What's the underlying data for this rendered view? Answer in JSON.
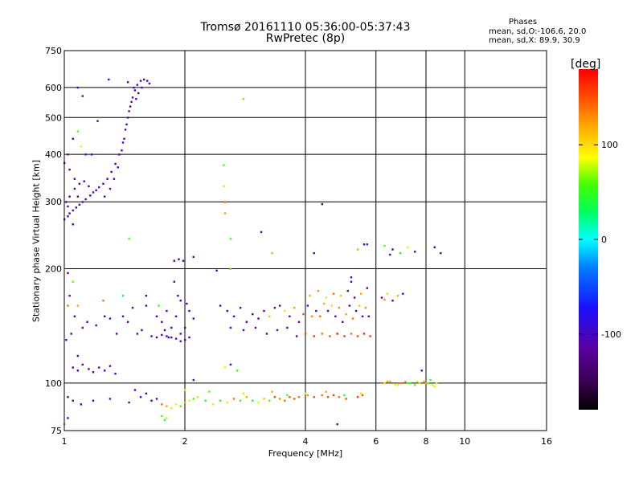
{
  "chart_data": {
    "type": "scatter",
    "title": "Tromsø 20161110 05:36:00-05:37:43",
    "subtitle": "RwPretec (8p)",
    "xlabel": "Frequency [MHz]",
    "ylabel": "Stationary phase Virtual Height [km]",
    "x_scale": "log",
    "y_scale": "log",
    "xlim": [
      1,
      16
    ],
    "ylim": [
      75,
      750
    ],
    "x_ticks": [
      "1",
      "2",
      "4",
      "6",
      "8",
      "10",
      "16"
    ],
    "y_ticks": [
      "75",
      "100",
      "200",
      "300",
      "400",
      "500",
      "600",
      "750"
    ],
    "grid": true,
    "phases_summary": {
      "header": "Phases",
      "o_line": "mean, sd,O:-106.6, 20.0",
      "x_line": "mean, sd,X:  89.9, 30.9"
    },
    "colorbar": {
      "unit": "[deg]",
      "tick_labels": [
        "100",
        "0",
        "-100"
      ],
      "tick_values": [
        100,
        0,
        -100
      ],
      "range": [
        -180,
        180
      ],
      "colormap": "rainbow (black-purple-blue-cyan-green-yellow-orange-red)"
    },
    "points": [
      [
        1.0,
        270,
        -110
      ],
      [
        1.02,
        275,
        -105
      ],
      [
        1.03,
        280,
        -110
      ],
      [
        1.05,
        285,
        -100
      ],
      [
        1.07,
        290,
        -110
      ],
      [
        1.09,
        295,
        -105
      ],
      [
        1.11,
        300,
        -100
      ],
      [
        1.13,
        305,
        -110
      ],
      [
        1.16,
        312,
        -100
      ],
      [
        1.18,
        318,
        -105
      ],
      [
        1.2,
        322,
        -110
      ],
      [
        1.22,
        328,
        -100
      ],
      [
        1.25,
        335,
        -105
      ],
      [
        1.28,
        345,
        -110
      ],
      [
        1.31,
        360,
        -100
      ],
      [
        1.34,
        378,
        -105
      ],
      [
        1.37,
        400,
        -110
      ],
      [
        1.4,
        430,
        -100
      ],
      [
        1.42,
        465,
        -105
      ],
      [
        1.44,
        500,
        -110
      ],
      [
        1.46,
        535,
        -100
      ],
      [
        1.48,
        565,
        -105
      ],
      [
        1.5,
        590,
        -110
      ],
      [
        1.52,
        610,
        -100
      ],
      [
        1.55,
        625,
        -105
      ],
      [
        1.58,
        630,
        -110
      ],
      [
        1.61,
        625,
        -100
      ],
      [
        1.63,
        615,
        -105
      ],
      [
        1.01,
        300,
        -120
      ],
      [
        1.03,
        310,
        -90
      ],
      [
        1.06,
        325,
        -115
      ],
      [
        1.09,
        335,
        -100
      ],
      [
        1.12,
        340,
        -110
      ],
      [
        1.15,
        330,
        -95
      ],
      [
        1.05,
        262,
        -110
      ],
      [
        1.02,
        292,
        -100
      ],
      [
        1.08,
        310,
        -105
      ],
      [
        1.26,
        310,
        -100
      ],
      [
        1.3,
        325,
        -110
      ],
      [
        1.33,
        345,
        -100
      ],
      [
        1.36,
        370,
        -105
      ],
      [
        1.39,
        410,
        -110
      ],
      [
        1.41,
        440,
        -100
      ],
      [
        1.43,
        480,
        -105
      ],
      [
        1.45,
        520,
        -110
      ],
      [
        1.47,
        550,
        -100
      ],
      [
        1.51,
        560,
        -105
      ],
      [
        1.53,
        580,
        -110
      ],
      [
        1.56,
        600,
        -100
      ],
      [
        1.49,
        600,
        -105
      ],
      [
        1.44,
        620,
        -110
      ],
      [
        1.0,
        380,
        -130
      ],
      [
        1.02,
        400,
        -120
      ],
      [
        1.05,
        440,
        -115
      ],
      [
        1.08,
        600,
        -105
      ],
      [
        1.11,
        570,
        -110
      ],
      [
        1.13,
        400,
        -100
      ],
      [
        1.17,
        400,
        -105
      ],
      [
        1.21,
        490,
        -100
      ],
      [
        1.29,
        630,
        -110
      ],
      [
        1.08,
        460,
        60
      ],
      [
        1.1,
        420,
        80
      ],
      [
        1.06,
        345,
        -110
      ],
      [
        1.03,
        365,
        -120
      ],
      [
        1.01,
        130,
        -100
      ],
      [
        1.04,
        135,
        -110
      ],
      [
        1.06,
        150,
        -105
      ],
      [
        1.08,
        160,
        120
      ],
      [
        1.11,
        140,
        -100
      ],
      [
        1.14,
        145,
        -110
      ],
      [
        1.2,
        142,
        -105
      ],
      [
        1.26,
        150,
        -100
      ],
      [
        1.3,
        148,
        -110
      ],
      [
        1.35,
        135,
        -105
      ],
      [
        1.4,
        150,
        -100
      ],
      [
        1.44,
        145,
        -110
      ],
      [
        1.48,
        158,
        -105
      ],
      [
        1.52,
        135,
        -100
      ],
      [
        1.56,
        138,
        -110
      ],
      [
        1.6,
        160,
        -105
      ],
      [
        1.65,
        133,
        -100
      ],
      [
        1.7,
        150,
        -110
      ],
      [
        1.75,
        145,
        -105
      ],
      [
        1.8,
        155,
        -100
      ],
      [
        1.85,
        140,
        -110
      ],
      [
        1.9,
        150,
        -105
      ],
      [
        1.95,
        135,
        -100
      ],
      [
        2.0,
        140,
        -110
      ],
      [
        2.05,
        155,
        -105
      ],
      [
        2.1,
        148,
        -100
      ],
      [
        1.92,
        170,
        -105
      ],
      [
        1.88,
        185,
        -110
      ],
      [
        1.95,
        165,
        -100
      ],
      [
        2.02,
        162,
        -105
      ],
      [
        1.78,
        138,
        -110
      ],
      [
        1.82,
        132,
        -100
      ],
      [
        1.72,
        160,
        50
      ],
      [
        1.6,
        170,
        -120
      ],
      [
        1.25,
        165,
        140
      ],
      [
        1.4,
        170,
        30
      ],
      [
        2.05,
        132,
        -100
      ],
      [
        2.0,
        130,
        -110
      ],
      [
        1.95,
        129,
        -105
      ],
      [
        1.9,
        131,
        -100
      ],
      [
        1.85,
        132,
        -110
      ],
      [
        1.8,
        133,
        -105
      ],
      [
        1.75,
        134,
        -100
      ],
      [
        1.7,
        132,
        -110
      ],
      [
        1.88,
        210,
        -120
      ],
      [
        1.93,
        212,
        -110
      ],
      [
        1.98,
        210,
        -100
      ],
      [
        2.1,
        215,
        -100
      ],
      [
        1.05,
        110,
        -110
      ],
      [
        1.08,
        108,
        -100
      ],
      [
        1.11,
        112,
        -105
      ],
      [
        1.15,
        109,
        -110
      ],
      [
        1.18,
        107,
        -100
      ],
      [
        1.22,
        110,
        -105
      ],
      [
        1.26,
        108,
        -110
      ],
      [
        1.3,
        111,
        -100
      ],
      [
        1.34,
        106,
        -105
      ],
      [
        1.02,
        92,
        -110
      ],
      [
        1.05,
        90,
        -100
      ],
      [
        1.1,
        88,
        -105
      ],
      [
        1.18,
        90,
        -110
      ],
      [
        1.3,
        91,
        -100
      ],
      [
        1.45,
        89,
        -110
      ],
      [
        1.55,
        92,
        -105
      ],
      [
        1.65,
        90,
        -100
      ],
      [
        1.75,
        88,
        140
      ],
      [
        1.8,
        87,
        120
      ],
      [
        1.85,
        86,
        100
      ],
      [
        1.9,
        88,
        80
      ],
      [
        1.95,
        87,
        60
      ],
      [
        2.0,
        89,
        120
      ],
      [
        2.05,
        90,
        80
      ],
      [
        2.1,
        91,
        60
      ],
      [
        2.15,
        92,
        100
      ],
      [
        2.25,
        90,
        40
      ],
      [
        2.35,
        88,
        80
      ],
      [
        2.45,
        90,
        50
      ],
      [
        2.55,
        89,
        100
      ],
      [
        2.65,
        91,
        140
      ],
      [
        2.75,
        90,
        60
      ],
      [
        2.85,
        92,
        120
      ],
      [
        2.95,
        90,
        40
      ],
      [
        3.05,
        89,
        80
      ],
      [
        3.15,
        91,
        110
      ],
      [
        3.25,
        90,
        60
      ],
      [
        3.35,
        92,
        150
      ],
      [
        3.45,
        91,
        130
      ],
      [
        3.55,
        90,
        140
      ],
      [
        3.65,
        92,
        150
      ],
      [
        3.75,
        91,
        150
      ],
      [
        3.85,
        92,
        140
      ],
      [
        4.05,
        93,
        130
      ],
      [
        4.2,
        92,
        150
      ],
      [
        4.4,
        93,
        140
      ],
      [
        4.55,
        92,
        150
      ],
      [
        4.7,
        93,
        160
      ],
      [
        4.85,
        92,
        140
      ],
      [
        5.05,
        91,
        150
      ],
      [
        5.4,
        92,
        160
      ],
      [
        5.55,
        93,
        150
      ],
      [
        2.0,
        96,
        80
      ],
      [
        2.3,
        95,
        60
      ],
      [
        2.8,
        94,
        100
      ],
      [
        3.3,
        95,
        120
      ],
      [
        3.6,
        93,
        60
      ],
      [
        4.0,
        94,
        80
      ],
      [
        4.5,
        95,
        120
      ],
      [
        5.0,
        93,
        40
      ],
      [
        5.5,
        94,
        100
      ],
      [
        1.5,
        96,
        -110
      ],
      [
        1.6,
        94,
        -100
      ],
      [
        1.7,
        91,
        -105
      ],
      [
        1.75,
        82,
        60
      ],
      [
        1.78,
        80,
        20
      ],
      [
        1.8,
        81,
        100
      ],
      [
        6.3,
        100,
        100
      ],
      [
        6.5,
        101,
        120
      ],
      [
        6.7,
        99,
        80
      ],
      [
        6.9,
        100,
        140
      ],
      [
        7.1,
        101,
        120
      ],
      [
        7.3,
        100,
        40
      ],
      [
        7.5,
        99,
        60
      ],
      [
        7.7,
        100,
        100
      ],
      [
        7.9,
        101,
        120
      ],
      [
        8.1,
        100,
        60
      ],
      [
        8.3,
        99,
        100
      ],
      [
        8.5,
        100,
        80
      ],
      [
        6.4,
        101,
        120
      ],
      [
        6.8,
        99,
        100
      ],
      [
        7.2,
        100,
        60
      ],
      [
        7.6,
        101,
        80
      ],
      [
        8.0,
        100,
        120
      ],
      [
        8.2,
        102,
        40
      ],
      [
        8.4,
        98,
        100
      ],
      [
        2.45,
        160,
        -110
      ],
      [
        2.55,
        155,
        -105
      ],
      [
        2.65,
        150,
        -100
      ],
      [
        2.75,
        158,
        -110
      ],
      [
        2.85,
        145,
        -105
      ],
      [
        2.95,
        152,
        -100
      ],
      [
        3.05,
        148,
        -110
      ],
      [
        3.15,
        155,
        -105
      ],
      [
        3.25,
        150,
        110
      ],
      [
        3.35,
        158,
        -100
      ],
      [
        3.45,
        160,
        -110
      ],
      [
        3.55,
        155,
        80
      ],
      [
        3.65,
        150,
        -105
      ],
      [
        3.75,
        158,
        120
      ],
      [
        3.85,
        145,
        -100
      ],
      [
        3.95,
        152,
        150
      ],
      [
        4.05,
        160,
        -105
      ],
      [
        4.15,
        150,
        130
      ],
      [
        4.25,
        155,
        -100
      ],
      [
        4.35,
        150,
        140
      ],
      [
        4.45,
        162,
        120
      ],
      [
        4.55,
        155,
        -110
      ],
      [
        4.65,
        160,
        100
      ],
      [
        4.75,
        150,
        -105
      ],
      [
        4.85,
        158,
        130
      ],
      [
        4.95,
        145,
        -100
      ],
      [
        5.05,
        152,
        120
      ],
      [
        5.15,
        160,
        -110
      ],
      [
        5.25,
        148,
        140
      ],
      [
        5.35,
        155,
        -100
      ],
      [
        5.45,
        160,
        110
      ],
      [
        5.55,
        150,
        -105
      ],
      [
        5.65,
        158,
        130
      ],
      [
        5.75,
        150,
        -110
      ],
      [
        2.6,
        140,
        -105
      ],
      [
        2.8,
        138,
        -100
      ],
      [
        3.0,
        140,
        -110
      ],
      [
        3.2,
        135,
        -105
      ],
      [
        3.4,
        138,
        -100
      ],
      [
        3.6,
        140,
        -110
      ],
      [
        3.8,
        133,
        -105
      ],
      [
        4.0,
        135,
        150
      ],
      [
        4.2,
        133,
        160
      ],
      [
        4.4,
        135,
        140
      ],
      [
        4.6,
        133,
        150
      ],
      [
        4.8,
        135,
        170
      ],
      [
        5.0,
        133,
        160
      ],
      [
        5.2,
        135,
        140
      ],
      [
        5.4,
        133,
        150
      ],
      [
        5.6,
        135,
        170
      ],
      [
        5.8,
        133,
        160
      ],
      [
        4.1,
        170,
        120
      ],
      [
        4.3,
        175,
        130
      ],
      [
        4.5,
        168,
        100
      ],
      [
        4.7,
        172,
        140
      ],
      [
        4.9,
        170,
        110
      ],
      [
        5.1,
        175,
        -110
      ],
      [
        5.3,
        168,
        -105
      ],
      [
        5.5,
        172,
        120
      ],
      [
        5.7,
        178,
        -100
      ],
      [
        5.2,
        185,
        -100
      ],
      [
        6.2,
        168,
        -110
      ],
      [
        6.4,
        172,
        100
      ],
      [
        6.6,
        165,
        -105
      ],
      [
        6.8,
        170,
        120
      ],
      [
        7.0,
        172,
        -100
      ],
      [
        6.3,
        166,
        130
      ],
      [
        6.3,
        230,
        60
      ],
      [
        6.6,
        225,
        -110
      ],
      [
        6.9,
        220,
        40
      ],
      [
        7.2,
        228,
        80
      ],
      [
        7.5,
        222,
        -100
      ],
      [
        8.4,
        228,
        -110
      ],
      [
        8.7,
        220,
        -105
      ],
      [
        6.5,
        218,
        -100
      ],
      [
        5.7,
        232,
        -100
      ],
      [
        2.5,
        375,
        60
      ],
      [
        2.5,
        330,
        100
      ],
      [
        2.52,
        300,
        140
      ],
      [
        2.52,
        280,
        120
      ],
      [
        2.6,
        240,
        60
      ],
      [
        2.8,
        560,
        120
      ],
      [
        3.1,
        250,
        -110
      ],
      [
        1.45,
        240,
        60
      ],
      [
        2.4,
        198,
        -100
      ],
      [
        2.6,
        200,
        60
      ],
      [
        3.3,
        220,
        120
      ],
      [
        4.2,
        220,
        -100
      ],
      [
        4.4,
        296,
        -110
      ],
      [
        5.2,
        190,
        -100
      ],
      [
        5.4,
        225,
        120
      ],
      [
        5.6,
        232,
        -105
      ],
      [
        1.02,
        195,
        -100
      ],
      [
        1.05,
        185,
        60
      ],
      [
        1.02,
        160,
        140
      ],
      [
        1.03,
        170,
        -110
      ],
      [
        1.08,
        118,
        -105
      ],
      [
        2.1,
        102,
        -110
      ],
      [
        2.6,
        112,
        -100
      ],
      [
        2.7,
        108,
        60
      ],
      [
        2.52,
        110,
        80
      ],
      [
        4.8,
        78,
        -105
      ],
      [
        7.8,
        108,
        -110
      ],
      [
        1.0,
        78,
        60
      ],
      [
        1.02,
        81,
        -110
      ]
    ]
  }
}
